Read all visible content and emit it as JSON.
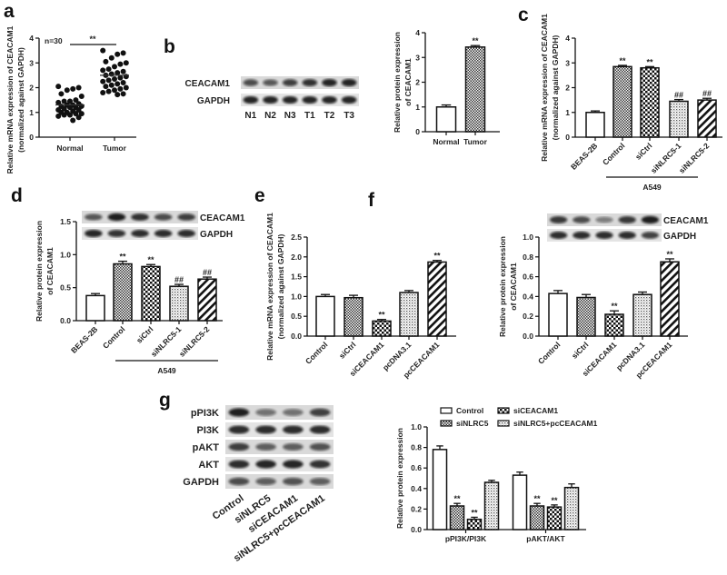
{
  "panels": [
    "a",
    "b",
    "c",
    "d",
    "e",
    "f",
    "g"
  ],
  "blots": {
    "b": {
      "rows": [
        "CEACAM1",
        "GAPDH"
      ],
      "lanes": [
        "N1",
        "N2",
        "N3",
        "T1",
        "T2",
        "T3"
      ]
    },
    "d": {
      "rows": [
        "CEACAM1",
        "GAPDH"
      ]
    },
    "f": {
      "rows": [
        "CEACAM1",
        "GAPDH"
      ]
    },
    "g": {
      "rows": [
        "pPI3K",
        "PI3K",
        "pAKT",
        "AKT",
        "GAPDH"
      ],
      "lanes": [
        "Control",
        "siNLRC5",
        "siCEACAM1",
        "siNLRC5+pcCEACAM1"
      ]
    }
  },
  "chart_data": [
    {
      "panel": "a",
      "type": "scatter",
      "categories": [
        "Normal",
        "Tumor"
      ],
      "series": [
        {
          "values": [
            2.05,
            2.0,
            1.95,
            1.9,
            1.75,
            1.65,
            1.5,
            1.45,
            1.45,
            1.4,
            1.35,
            1.3,
            1.3,
            1.25,
            1.25,
            1.2,
            1.2,
            1.15,
            1.1,
            1.1,
            1.05,
            1.0,
            1.0,
            0.95,
            0.95,
            0.9,
            0.9,
            0.85,
            0.8,
            0.68
          ]
        },
        {
          "values": [
            3.5,
            3.4,
            3.35,
            3.2,
            3.05,
            3.0,
            2.95,
            2.85,
            2.75,
            2.7,
            2.65,
            2.6,
            2.55,
            2.5,
            2.45,
            2.4,
            2.35,
            2.3,
            2.25,
            2.2,
            2.15,
            2.1,
            2.05,
            2.0,
            1.95,
            1.9,
            1.85,
            1.8,
            1.75,
            1.72
          ]
        }
      ],
      "means": [
        1.3,
        2.5
      ],
      "ylim": [
        0,
        4
      ],
      "yticks": [
        0,
        1,
        2,
        3,
        4
      ],
      "ytick_labels": [
        "0",
        "1",
        "2",
        "3",
        "4"
      ],
      "ylabel": [
        "Relative mRNA expression of CEACAM1",
        "(normalized against GAPDH)"
      ],
      "annotation": "n=30",
      "significance": "**"
    },
    {
      "panel": "b",
      "type": "bar",
      "categories": [
        "Normal",
        "Tumor"
      ],
      "values": [
        1.0,
        3.42
      ],
      "errors": [
        0.08,
        0.06
      ],
      "significance": [
        "",
        "**"
      ],
      "patterns": [
        "white",
        "fine"
      ],
      "ylim": [
        0,
        4
      ],
      "yticks": [
        0,
        1,
        2,
        3,
        4
      ],
      "ytick_labels": [
        "0",
        "1",
        "2",
        "3",
        "4"
      ],
      "ylabel": [
        "Relative protein expression",
        "of CEACAM1"
      ]
    },
    {
      "panel": "c",
      "type": "bar",
      "categories": [
        "BEAS-2B",
        "Control",
        "siCtrl",
        "siNLRC5-1",
        "siNLRC5-2"
      ],
      "values": [
        1.0,
        2.85,
        2.8,
        1.45,
        1.5
      ],
      "errors": [
        0.06,
        0.05,
        0.05,
        0.07,
        0.07
      ],
      "significance": [
        "",
        "**",
        "**",
        "##",
        "##"
      ],
      "patterns": [
        "white",
        "fine",
        "checker",
        "dots",
        "stripes"
      ],
      "ylim": [
        0,
        4
      ],
      "yticks": [
        0,
        1,
        2,
        3,
        4
      ],
      "ytick_labels": [
        "0",
        "1",
        "2",
        "3",
        "4"
      ],
      "ylabel": [
        "Relative mRNA expression of CEACAM1",
        "(normalized against GAPDH)"
      ],
      "group_label": "A549"
    },
    {
      "panel": "d",
      "type": "bar",
      "categories": [
        "BEAS-2B",
        "Control",
        "siCtrl",
        "siNLRC5-1",
        "siNLRC5-2"
      ],
      "values": [
        0.38,
        0.86,
        0.82,
        0.52,
        0.63
      ],
      "errors": [
        0.03,
        0.04,
        0.03,
        0.03,
        0.03
      ],
      "significance": [
        "",
        "**",
        "**",
        "##",
        "##"
      ],
      "patterns": [
        "white",
        "fine",
        "checker",
        "dots",
        "stripes"
      ],
      "ylim": [
        0,
        1.5
      ],
      "yticks": [
        0,
        0.5,
        1.0,
        1.5
      ],
      "ytick_labels": [
        "0.0",
        "0.5",
        "1.0",
        "1.5"
      ],
      "ylabel": [
        "Relative protein expression",
        "of CEACAM1"
      ],
      "group_label": "A549"
    },
    {
      "panel": "e",
      "type": "bar",
      "categories": [
        "Control",
        "siCtrl",
        "siCEACAM1",
        "pcDNA3.1",
        "pcCEACAM1"
      ],
      "values": [
        1.0,
        0.97,
        0.38,
        1.1,
        1.87
      ],
      "errors": [
        0.05,
        0.06,
        0.04,
        0.05,
        0.04
      ],
      "significance": [
        "",
        "",
        "**",
        "",
        "**"
      ],
      "patterns": [
        "white",
        "fine",
        "checker",
        "dots",
        "stripes"
      ],
      "ylim": [
        0,
        2.5
      ],
      "yticks": [
        0,
        0.5,
        1.0,
        1.5,
        2.0,
        2.5
      ],
      "ytick_labels": [
        "0.0",
        "0.5",
        "1.0",
        "1.5",
        "2.0",
        "2.5"
      ],
      "ylabel": [
        "Relative mRNA expression of CEACAM1",
        "(normalized against GAPDH)"
      ]
    },
    {
      "panel": "f",
      "type": "bar",
      "categories": [
        "Control",
        "siCtrl",
        "siCEACAM1",
        "pcDNA3.1",
        "pcCEACAM1"
      ],
      "values": [
        0.43,
        0.39,
        0.22,
        0.42,
        0.75
      ],
      "errors": [
        0.03,
        0.03,
        0.035,
        0.025,
        0.03
      ],
      "significance": [
        "",
        "",
        "**",
        "",
        "**"
      ],
      "patterns": [
        "white",
        "fine",
        "checker",
        "dots",
        "stripes"
      ],
      "ylim": [
        0,
        1.0
      ],
      "yticks": [
        0,
        0.2,
        0.4,
        0.6,
        0.8,
        1.0
      ],
      "ytick_labels": [
        "0.0",
        "0.2",
        "0.4",
        "0.6",
        "0.8",
        "1.0"
      ],
      "ylabel": [
        "Relative protein expression",
        "of CEACAM1"
      ]
    },
    {
      "panel": "g",
      "type": "bar",
      "categories": [
        "pPI3K/PI3K",
        "pAKT/AKT"
      ],
      "series": [
        {
          "name": "Control",
          "values": [
            0.78,
            0.53
          ],
          "errors": [
            0.035,
            0.03
          ],
          "significance": [
            "",
            ""
          ],
          "pattern": "white"
        },
        {
          "name": "siNLRC5",
          "values": [
            0.23,
            0.23
          ],
          "errors": [
            0.025,
            0.025
          ],
          "significance": [
            "**",
            "**"
          ],
          "pattern": "fine"
        },
        {
          "name": "siCEACAM1",
          "values": [
            0.1,
            0.22
          ],
          "errors": [
            0.02,
            0.02
          ],
          "significance": [
            "**",
            "**"
          ],
          "pattern": "checker"
        },
        {
          "name": "siNLRC5+pcCEACAM1",
          "values": [
            0.46,
            0.41
          ],
          "errors": [
            0.02,
            0.035
          ],
          "significance": [
            "",
            ""
          ],
          "pattern": "dots"
        }
      ],
      "ylim": [
        0,
        1.0
      ],
      "yticks": [
        0,
        0.2,
        0.4,
        0.6,
        0.8,
        1.0
      ],
      "ytick_labels": [
        "0.0",
        "0.2",
        "0.4",
        "0.6",
        "0.8",
        "1.0"
      ],
      "ylabel": [
        "Relative protein expression"
      ],
      "legend": "top"
    }
  ]
}
